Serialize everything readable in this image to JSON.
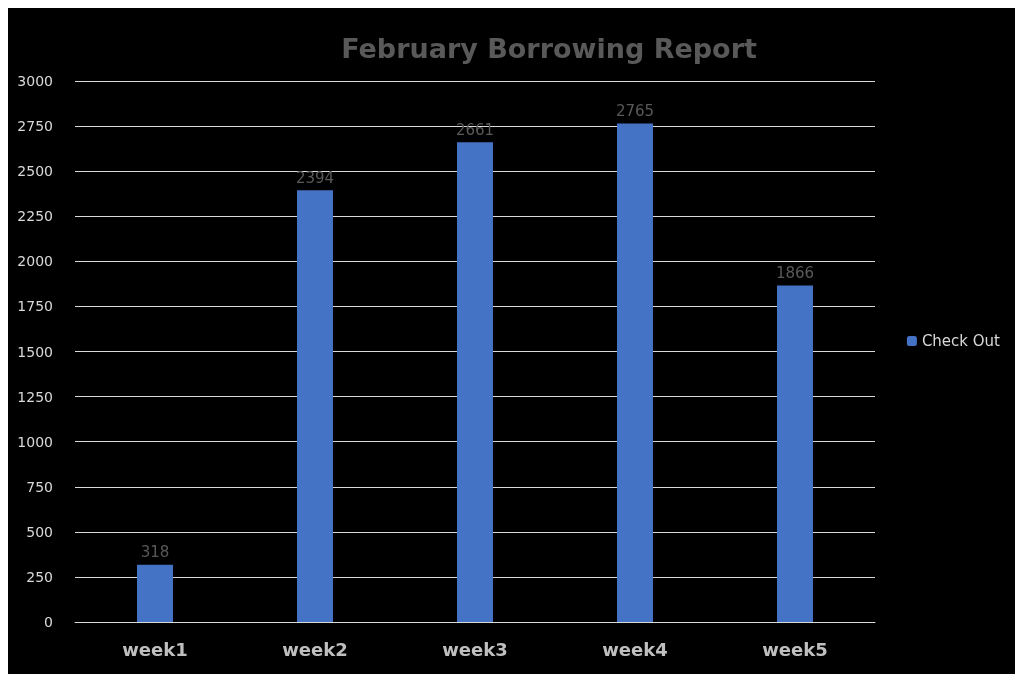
{
  "chart_data": {
    "type": "bar",
    "title": "February Borrowing Report",
    "categories": [
      "week1",
      "week2",
      "week3",
      "week4",
      "week5"
    ],
    "series": [
      {
        "name": "Check Out",
        "color": "#4472c4",
        "values": [
          318,
          2394,
          2661,
          2765,
          1866
        ]
      }
    ],
    "ylim": [
      0,
      3000
    ],
    "yticks": [
      0,
      250,
      500,
      750,
      1000,
      1250,
      1500,
      1750,
      2000,
      2250,
      2500,
      2750,
      3000
    ],
    "grid": "y",
    "legend": "right",
    "data_labels": true
  }
}
